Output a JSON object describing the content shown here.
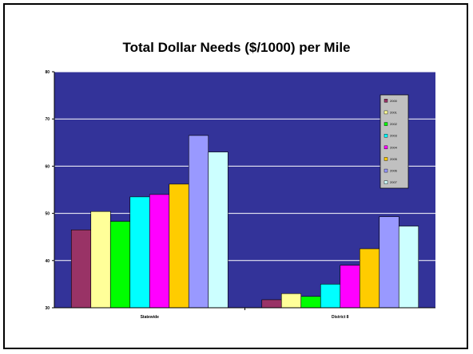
{
  "chart_data": {
    "type": "bar",
    "title": "Total Dollar Needs ($/1000) per Mile",
    "categories": [
      "Statewide",
      "District 8"
    ],
    "ylim": [
      30,
      80
    ],
    "yticks": [
      "30",
      "40",
      "50",
      "60",
      "70",
      "80"
    ],
    "grid": true,
    "legend_position": "right",
    "plot_background": "#333399",
    "series": [
      {
        "name": "2000",
        "color": "#993366",
        "values": [
          46.5,
          31.7
        ]
      },
      {
        "name": "2001",
        "color": "#FFFF99",
        "values": [
          50.4,
          33.0
        ]
      },
      {
        "name": "2002",
        "color": "#00FF00",
        "values": [
          48.3,
          32.4
        ]
      },
      {
        "name": "2003",
        "color": "#00FFFF",
        "values": [
          53.5,
          35.0
        ]
      },
      {
        "name": "2004",
        "color": "#FF00FF",
        "values": [
          54.0,
          39.0
        ]
      },
      {
        "name": "2005",
        "color": "#FFCC00",
        "values": [
          56.2,
          42.5
        ]
      },
      {
        "name": "2006",
        "color": "#9999FF",
        "values": [
          66.5,
          49.3
        ]
      },
      {
        "name": "2007",
        "color": "#CCFFFF",
        "values": [
          63.0,
          47.3
        ]
      }
    ]
  }
}
